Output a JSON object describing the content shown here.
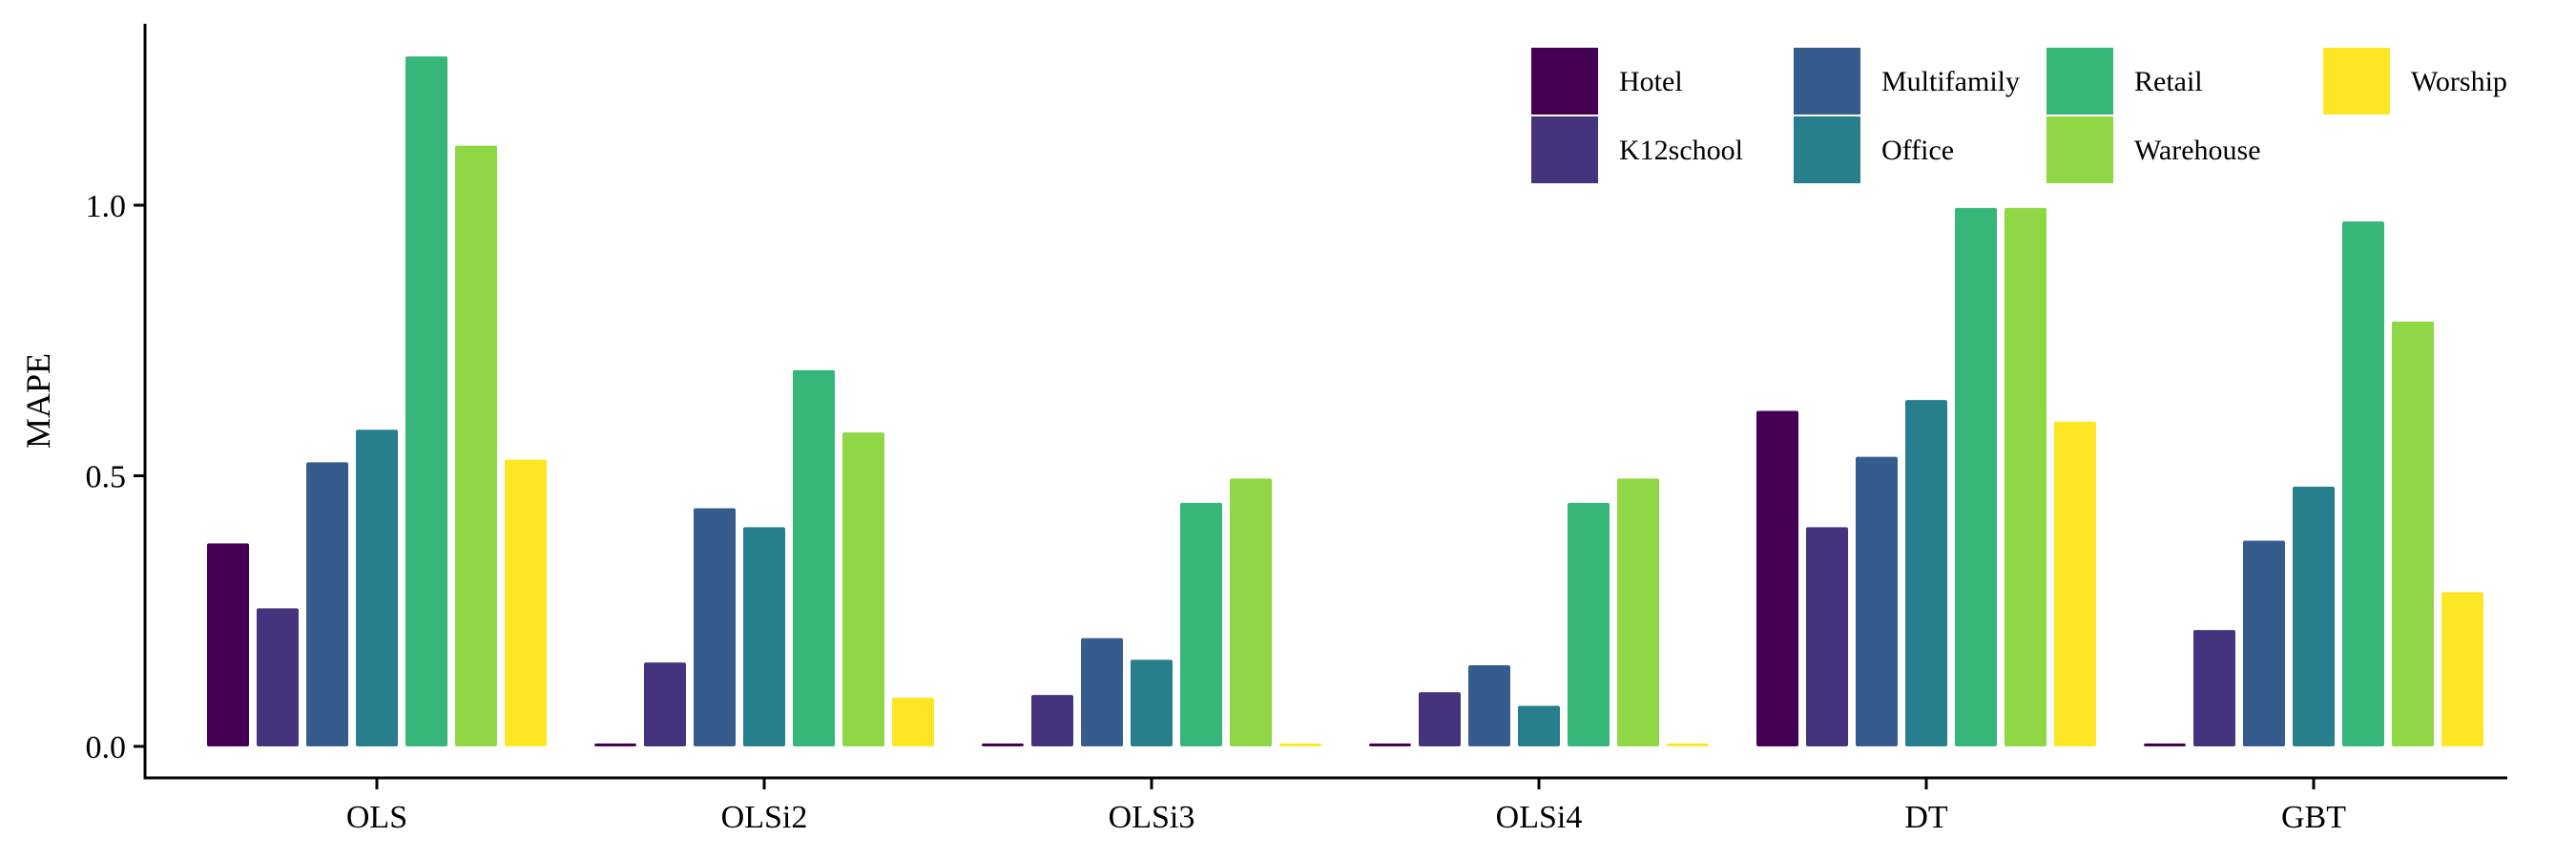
{
  "chart_data": {
    "type": "bar",
    "title": "",
    "xlabel": "",
    "ylabel": "MAPE",
    "ylim": [
      0,
      1.3
    ],
    "yticks": [
      0.0,
      0.5,
      1.0
    ],
    "ytick_labels": [
      "0.0",
      "0.5",
      "1.0"
    ],
    "grid": false,
    "legend_position": "top-right",
    "categories": [
      "OLS",
      "OLSi2",
      "OLSi3",
      "OLSi4",
      "DT",
      "GBT"
    ],
    "series": [
      {
        "name": "Hotel",
        "color": "#440154",
        "values": [
          0.375,
          0.005,
          0.005,
          0.005,
          0.62,
          0.005
        ]
      },
      {
        "name": "K12school",
        "color": "#46337E",
        "values": [
          0.255,
          0.155,
          0.095,
          0.1,
          0.405,
          0.215
        ]
      },
      {
        "name": "Multifamily",
        "color": "#365C8D",
        "values": [
          0.525,
          0.44,
          0.2,
          0.15,
          0.535,
          0.38
        ]
      },
      {
        "name": "Office",
        "color": "#277F8E",
        "values": [
          0.585,
          0.405,
          0.16,
          0.075,
          0.64,
          0.48
        ]
      },
      {
        "name": "Retail",
        "color": "#36B779",
        "values": [
          1.275,
          0.695,
          0.45,
          0.45,
          0.995,
          0.97
        ]
      },
      {
        "name": "Warehouse",
        "color": "#8FD744",
        "values": [
          1.11,
          0.58,
          0.495,
          0.495,
          0.995,
          0.785
        ]
      },
      {
        "name": "Worship",
        "color": "#FDE725",
        "values": [
          0.53,
          0.09,
          0.005,
          0.005,
          0.6,
          0.285
        ]
      }
    ]
  }
}
